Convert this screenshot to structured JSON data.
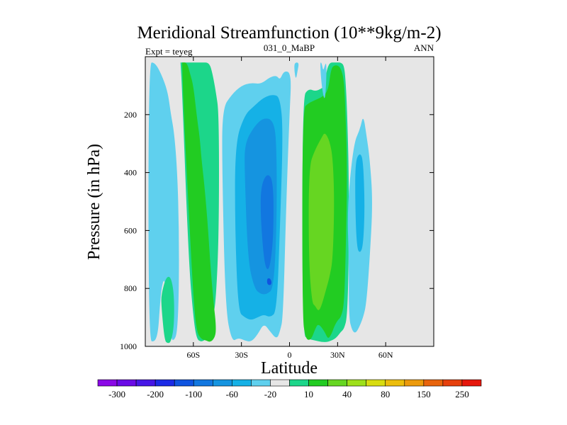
{
  "chart_data": {
    "type": "filled-contour",
    "title": "Meridional Streamfunction (10**9kg/m-2)",
    "subtitle_left": "Expt = teyeg",
    "subtitle_center": "031_0_MaBP",
    "subtitle_right": "ANN",
    "xlabel": "Latitude",
    "ylabel": "Pressure (in hPa)",
    "xlim": [
      -90,
      90
    ],
    "ylim": [
      1000,
      0
    ],
    "x_ticks": [
      {
        "value": -60,
        "label": "60S"
      },
      {
        "value": -30,
        "label": "30S"
      },
      {
        "value": 0,
        "label": "0"
      },
      {
        "value": 30,
        "label": "30N"
      },
      {
        "value": 60,
        "label": "60N"
      }
    ],
    "y_ticks": [
      {
        "value": 200,
        "label": "200"
      },
      {
        "value": 400,
        "label": "400"
      },
      {
        "value": 600,
        "label": "600"
      },
      {
        "value": 800,
        "label": "800"
      },
      {
        "value": 1000,
        "label": "1000"
      }
    ],
    "background_color": "#e6e6e6",
    "colorbar": {
      "colors": [
        "#8a08e6",
        "#6a0ae6",
        "#4616e6",
        "#1c2be6",
        "#0f54e0",
        "#1277e0",
        "#1594e0",
        "#15b1e6",
        "#5fd0ee",
        "#e6e6e6",
        "#1cd68a",
        "#22cc22",
        "#66d622",
        "#9ee01a",
        "#d8dc10",
        "#ecbd0c",
        "#ec9a0c",
        "#e8640c",
        "#e6400c",
        "#e6170c"
      ],
      "labels": [
        {
          "boundary": 1,
          "text": "-300"
        },
        {
          "boundary": 3,
          "text": "-200"
        },
        {
          "boundary": 5,
          "text": "-100"
        },
        {
          "boundary": 7,
          "text": "-60"
        },
        {
          "boundary": 9,
          "text": "-20"
        },
        {
          "boundary": 11,
          "text": "10"
        },
        {
          "boundary": 13,
          "text": "40"
        },
        {
          "boundary": 15,
          "text": "80"
        },
        {
          "boundary": 17,
          "text": "150"
        },
        {
          "boundary": 19,
          "text": "250"
        }
      ]
    },
    "contour_regions": [
      {
        "level": 8,
        "lat": [
          -88,
          -84,
          -82,
          -81,
          -80,
          -78,
          -76,
          -74,
          -72,
          -70,
          -69,
          -69,
          -70,
          -72,
          -74,
          -76,
          -80,
          -84,
          -88
        ],
        "p": [
          980,
          985,
          950,
          870,
          800,
          760,
          860,
          975,
          980,
          950,
          800,
          600,
          400,
          260,
          200,
          120,
          60,
          20,
          20
        ]
      },
      {
        "level": 10,
        "lat": [
          -80,
          -78,
          -76,
          -74,
          -72,
          -72,
          -74,
          -77,
          -80
        ],
        "p": [
          860,
          980,
          990,
          985,
          930,
          820,
          760,
          760,
          820
        ]
      },
      {
        "level": 10,
        "lat": [
          -68,
          -65,
          -60,
          -55,
          -50,
          -48,
          -46,
          -44,
          -44,
          -46,
          -48,
          -50,
          -52,
          -55,
          -58,
          -60,
          -63,
          -67,
          -68
        ],
        "p": [
          20,
          20,
          20,
          20,
          20,
          60,
          120,
          200,
          600,
          850,
          900,
          950,
          975,
          985,
          975,
          900,
          700,
          120,
          20
        ]
      },
      {
        "level": 11,
        "lat": [
          -67,
          -64,
          -62,
          -60,
          -58,
          -56,
          -55,
          -53,
          -51,
          -49,
          -47,
          -46,
          -46,
          -48,
          -50,
          -52,
          -55,
          -58,
          -60,
          -63,
          -66,
          -67
        ],
        "p": [
          20,
          20,
          60,
          100,
          200,
          280,
          350,
          450,
          580,
          750,
          870,
          920,
          960,
          980,
          985,
          980,
          975,
          950,
          830,
          520,
          200,
          20
        ]
      },
      {
        "level": 8,
        "lat": [
          -42,
          -36,
          -30,
          -24,
          -18,
          -12,
          -8,
          -6,
          -4,
          -2,
          0,
          1,
          0,
          -2,
          -4,
          -6,
          -8,
          -12,
          -16,
          -20,
          -24,
          -28,
          -32,
          -36,
          -40,
          -42
        ],
        "p": [
          180,
          130,
          100,
          90,
          95,
          70,
          65,
          80,
          55,
          50,
          55,
          90,
          200,
          500,
          900,
          950,
          975,
          950,
          920,
          960,
          985,
          980,
          970,
          985,
          870,
          400
        ]
      },
      {
        "level": 7,
        "lat": [
          -34,
          -28,
          -22,
          -16,
          -10,
          -6,
          -4,
          -6,
          -8,
          -12,
          -16,
          -20,
          -24,
          -28,
          -32,
          -34
        ],
        "p": [
          300,
          200,
          170,
          140,
          130,
          140,
          250,
          600,
          880,
          900,
          890,
          900,
          910,
          900,
          880,
          600
        ]
      },
      {
        "level": 6,
        "lat": [
          -28,
          -22,
          -16,
          -10,
          -8,
          -8,
          -10,
          -14,
          -18,
          -22,
          -26,
          -28
        ],
        "p": [
          300,
          240,
          210,
          220,
          300,
          600,
          800,
          820,
          820,
          800,
          700,
          400
        ]
      },
      {
        "level": 5,
        "lat": [
          -18,
          -14,
          -10,
          -10,
          -12,
          -14,
          -16,
          -18
        ],
        "p": [
          450,
          400,
          430,
          620,
          720,
          740,
          700,
          560
        ]
      },
      {
        "level": 4,
        "lat": [
          -14,
          -12,
          -11,
          -12,
          -14
        ],
        "p": [
          765,
          765,
          780,
          790,
          785
        ]
      },
      {
        "level": 8,
        "lat": [
          3,
          3,
          4,
          5,
          6
        ],
        "p": [
          20,
          50,
          80,
          50,
          20
        ]
      },
      {
        "level": 10,
        "lat": [
          8,
          12,
          16,
          20,
          22,
          23,
          25,
          28,
          30,
          32,
          34,
          35,
          36,
          37,
          37,
          36,
          34,
          32,
          30,
          28,
          24,
          20,
          16,
          12,
          8
        ],
        "p": [
          140,
          110,
          120,
          110,
          100,
          50,
          20,
          20,
          20,
          20,
          30,
          80,
          200,
          400,
          700,
          900,
          940,
          950,
          965,
          975,
          985,
          985,
          980,
          975,
          960
        ]
      },
      {
        "level": 11,
        "lat": [
          8,
          12,
          16,
          20,
          24,
          26,
          28,
          30,
          32,
          34,
          35,
          36,
          35,
          34,
          32,
          30,
          28,
          26,
          24,
          22,
          18,
          16,
          14,
          12,
          10,
          8
        ],
        "p": [
          180,
          160,
          150,
          140,
          120,
          40,
          30,
          30,
          40,
          80,
          200,
          400,
          700,
          860,
          900,
          910,
          930,
          960,
          975,
          950,
          920,
          940,
          970,
          980,
          970,
          900
        ]
      },
      {
        "level": 12,
        "lat": [
          12,
          16,
          20,
          22,
          25,
          27,
          28,
          27,
          25,
          23,
          20,
          18,
          16,
          14,
          12
        ],
        "p": [
          380,
          320,
          280,
          260,
          290,
          350,
          500,
          700,
          760,
          800,
          860,
          880,
          860,
          850,
          700
        ]
      },
      {
        "level": 8,
        "lat": [
          36,
          40,
          44,
          46,
          48,
          50,
          52,
          50,
          48,
          46,
          43,
          41,
          39,
          37,
          37
        ],
        "p": [
          520,
          300,
          250,
          200,
          270,
          350,
          500,
          700,
          850,
          900,
          940,
          955,
          945,
          900,
          700
        ]
      },
      {
        "level": 7,
        "lat": [
          41,
          44,
          46,
          47,
          46,
          44,
          42,
          41
        ],
        "p": [
          360,
          330,
          360,
          520,
          650,
          680,
          660,
          520
        ]
      },
      {
        "level": 8,
        "lat": [
          19,
          20,
          21,
          22,
          23,
          23,
          22,
          20
        ],
        "p": [
          20,
          20,
          50,
          30,
          20,
          80,
          160,
          100
        ]
      }
    ]
  }
}
